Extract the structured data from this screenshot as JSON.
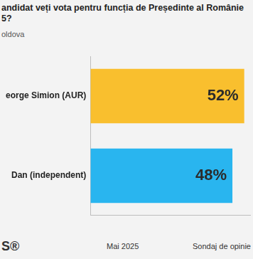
{
  "chart_data": {
    "type": "bar",
    "orientation": "horizontal",
    "title": [
      "andidat veți vota pentru funcția de Președinte al Românie",
      "5?"
    ],
    "subtitle": "oldova",
    "categories": [
      "eorge Simion (AUR)",
      "Dan (independent)"
    ],
    "values": [
      52,
      48
    ],
    "value_labels": [
      "52%",
      "48%"
    ],
    "colors": [
      "#f9bf2e",
      "#29b5ef"
    ],
    "xlim": [
      0,
      54
    ],
    "xticks": [],
    "data_labels": true,
    "grid": false,
    "tick_labels": "y"
  },
  "footer": {
    "logo": "S®",
    "date": "Mai 2025",
    "source": "Sondaj de opinie"
  }
}
